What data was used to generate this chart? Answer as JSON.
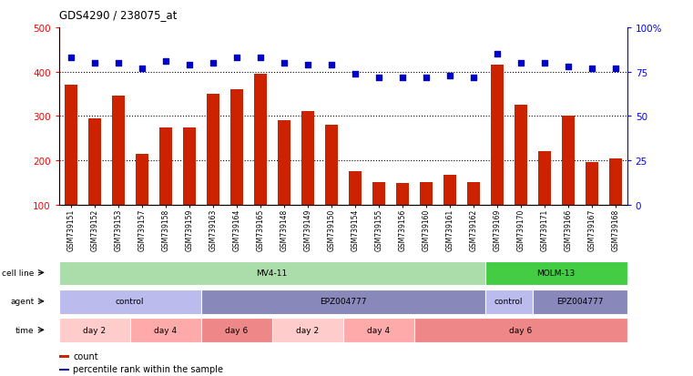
{
  "title": "GDS4290 / 238075_at",
  "samples": [
    "GSM739151",
    "GSM739152",
    "GSM739153",
    "GSM739157",
    "GSM739158",
    "GSM739159",
    "GSM739163",
    "GSM739164",
    "GSM739165",
    "GSM739148",
    "GSM739149",
    "GSM739150",
    "GSM739154",
    "GSM739155",
    "GSM739156",
    "GSM739160",
    "GSM739161",
    "GSM739162",
    "GSM739169",
    "GSM739170",
    "GSM739171",
    "GSM739166",
    "GSM739167",
    "GSM739168"
  ],
  "counts": [
    370,
    295,
    345,
    215,
    275,
    275,
    350,
    360,
    395,
    290,
    310,
    280,
    175,
    150,
    148,
    150,
    168,
    150,
    415,
    325,
    220,
    300,
    195,
    205
  ],
  "percentile_ranks": [
    83,
    80,
    80,
    77,
    81,
    79,
    80,
    83,
    83,
    80,
    79,
    79,
    74,
    72,
    72,
    72,
    73,
    72,
    85,
    80,
    80,
    78,
    77,
    77
  ],
  "bar_color": "#cc2200",
  "dot_color": "#0000cc",
  "ylim_left": [
    100,
    500
  ],
  "ylim_right": [
    0,
    100
  ],
  "yticks_left": [
    100,
    200,
    300,
    400,
    500
  ],
  "yticks_right": [
    0,
    25,
    50,
    75,
    100
  ],
  "grid_values": [
    200,
    300,
    400
  ],
  "cell_lines": [
    {
      "label": "MV4-11",
      "start": 0,
      "end": 18,
      "color": "#aaddaa"
    },
    {
      "label": "MOLM-13",
      "start": 18,
      "end": 24,
      "color": "#44cc44"
    }
  ],
  "agents": [
    {
      "label": "control",
      "start": 0,
      "end": 6,
      "color": "#bbbbee"
    },
    {
      "label": "EPZ004777",
      "start": 6,
      "end": 18,
      "color": "#8888bb"
    },
    {
      "label": "control",
      "start": 18,
      "end": 20,
      "color": "#bbbbee"
    },
    {
      "label": "EPZ004777",
      "start": 20,
      "end": 24,
      "color": "#8888bb"
    }
  ],
  "times": [
    {
      "label": "day 2",
      "start": 0,
      "end": 3,
      "color": "#ffcccc"
    },
    {
      "label": "day 4",
      "start": 3,
      "end": 6,
      "color": "#ffaaaa"
    },
    {
      "label": "day 6",
      "start": 6,
      "end": 9,
      "color": "#ee8888"
    },
    {
      "label": "day 2",
      "start": 9,
      "end": 12,
      "color": "#ffcccc"
    },
    {
      "label": "day 4",
      "start": 12,
      "end": 15,
      "color": "#ffaaaa"
    },
    {
      "label": "day 6",
      "start": 15,
      "end": 24,
      "color": "#ee8888"
    }
  ]
}
